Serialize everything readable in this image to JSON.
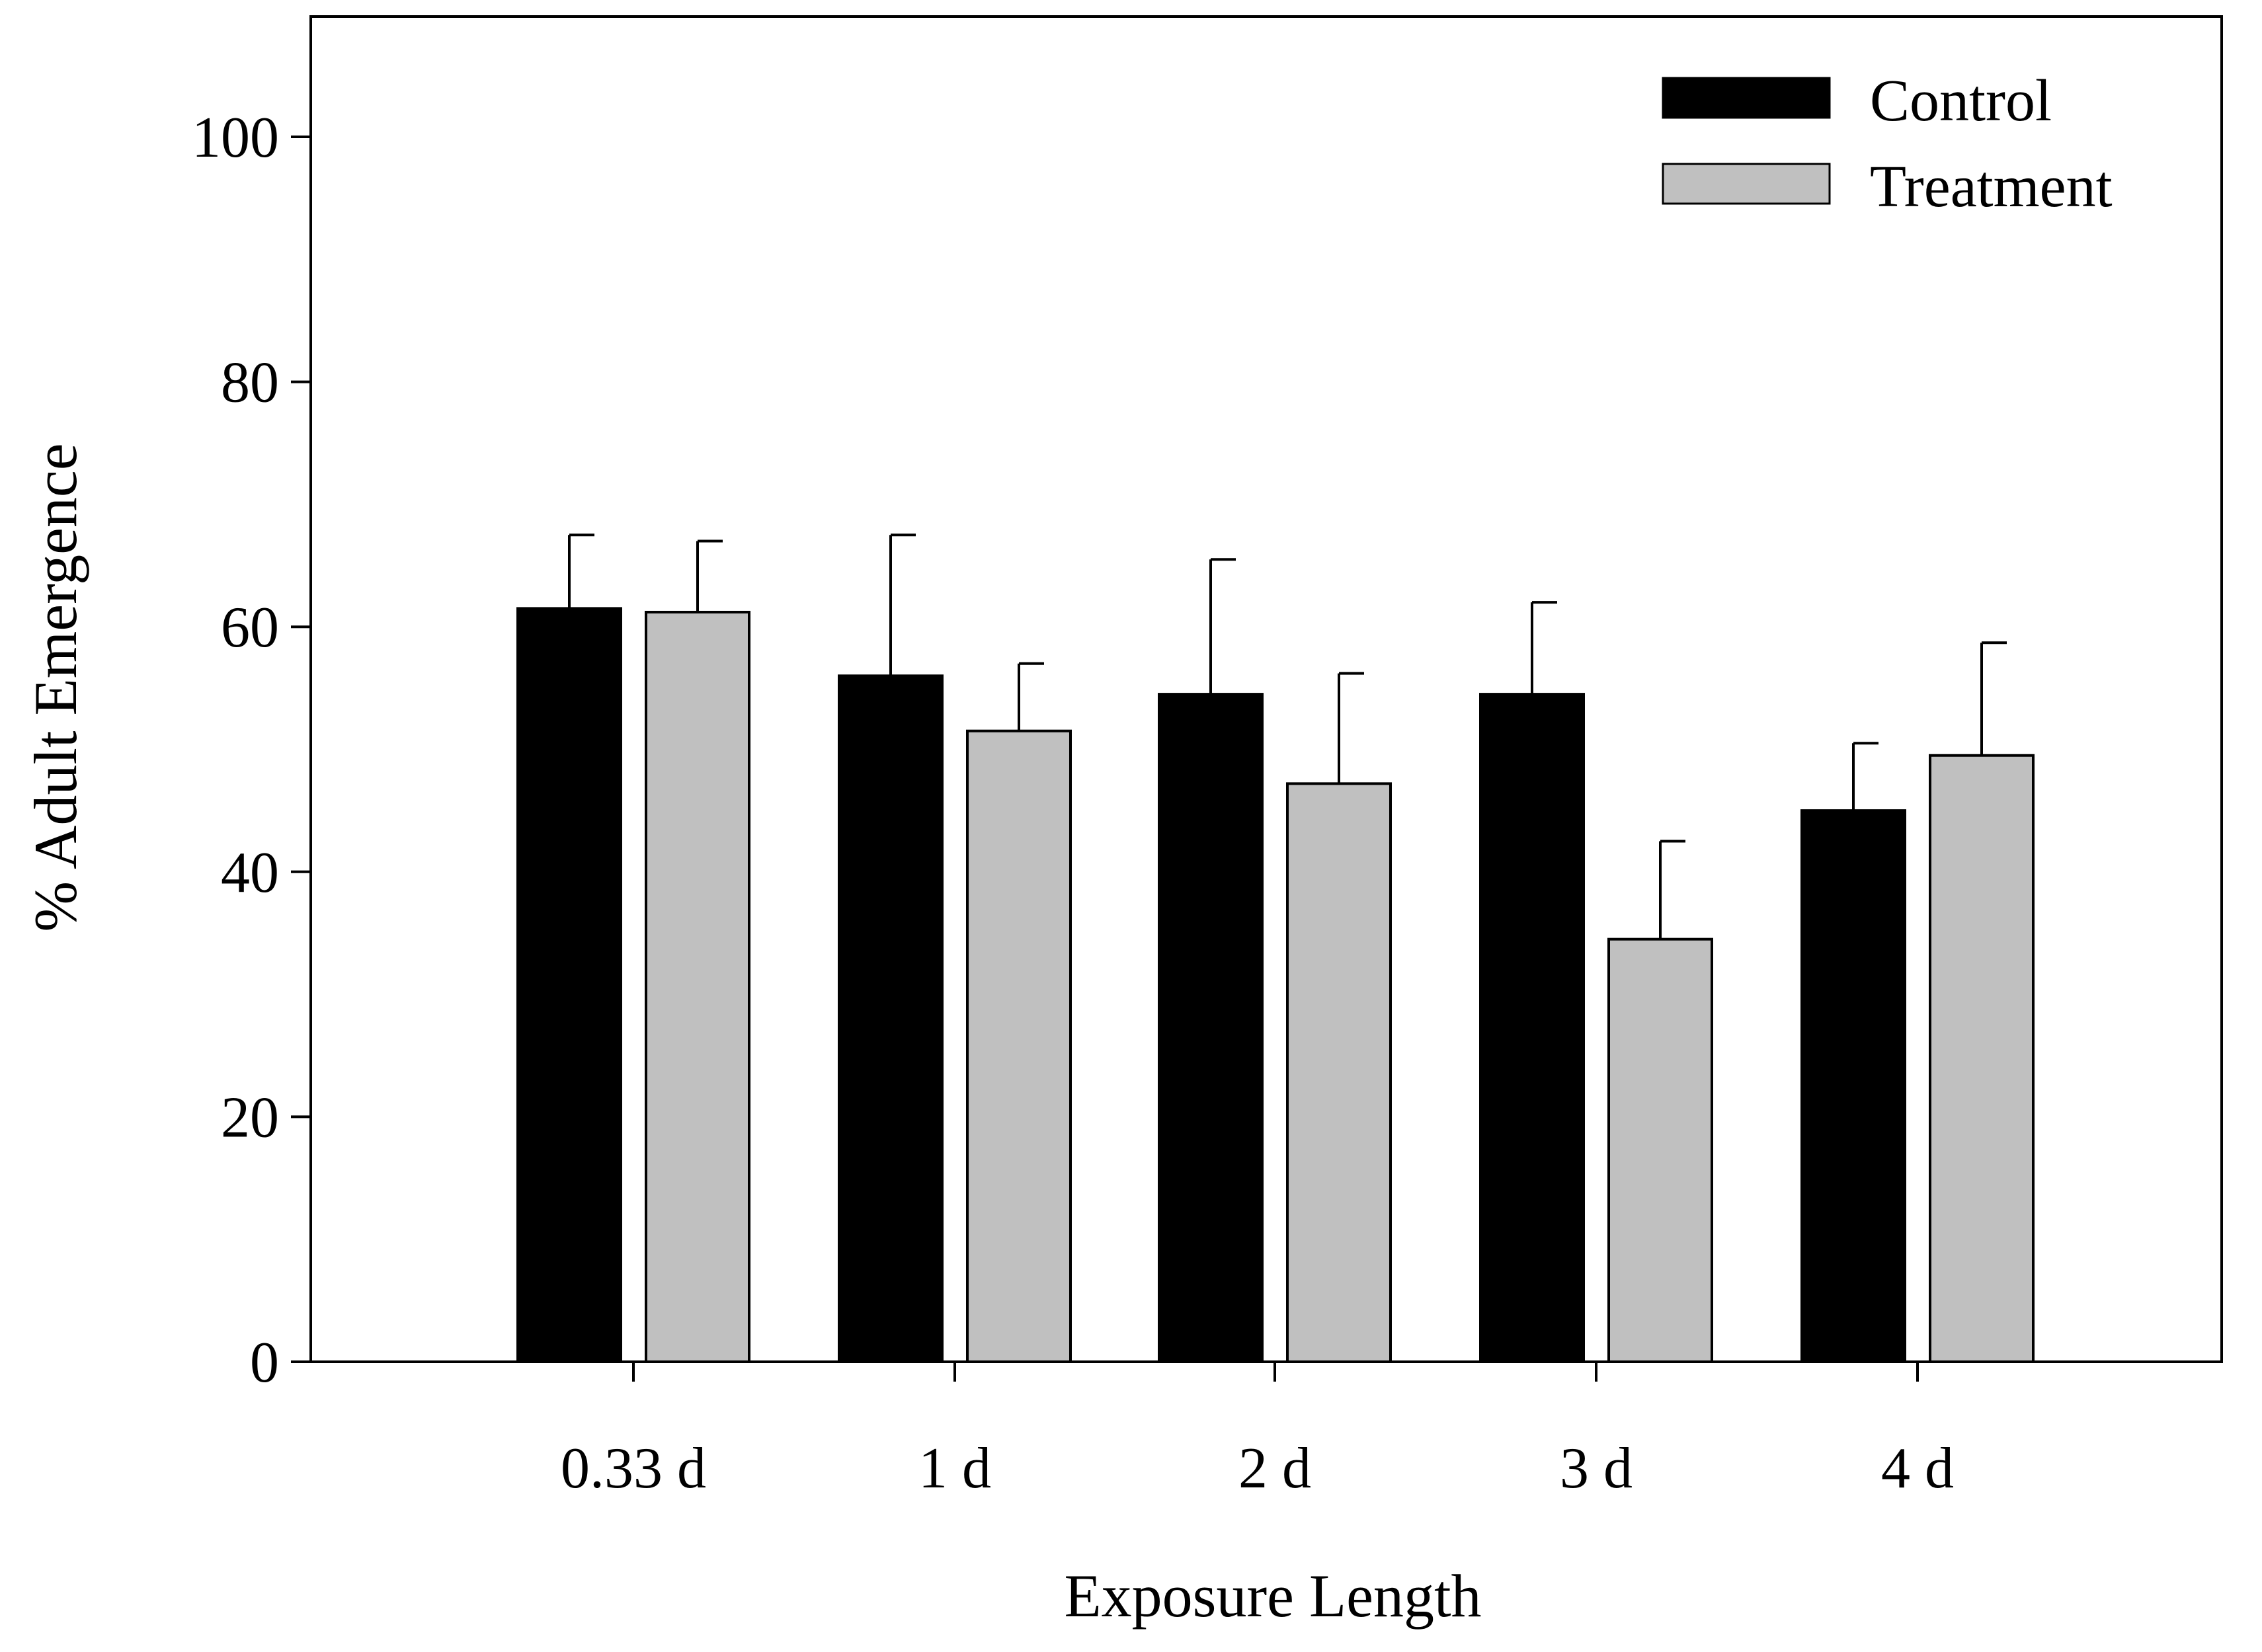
{
  "chart_data": {
    "type": "bar",
    "title": "",
    "xlabel": "Exposure Length",
    "ylabel": "% Adult Emergence",
    "ylim": [
      0,
      110
    ],
    "yticks": [
      0,
      20,
      40,
      60,
      80,
      100
    ],
    "grid": false,
    "legend_position": "top-right",
    "categories": [
      "0.33 d",
      "1 d",
      "2 d",
      "3 d",
      "4 d"
    ],
    "series": [
      {
        "name": "Control",
        "color": "#000000",
        "values": [
          61.5,
          56.0,
          54.5,
          54.5,
          45.0
        ],
        "errors": [
          6.0,
          11.5,
          11.0,
          7.5,
          5.5
        ]
      },
      {
        "name": "Treatment",
        "color": "#c0c0c0",
        "values": [
          61.2,
          51.5,
          47.2,
          34.5,
          49.5
        ],
        "errors": [
          5.8,
          5.5,
          9.0,
          8.0,
          9.2
        ]
      }
    ]
  }
}
